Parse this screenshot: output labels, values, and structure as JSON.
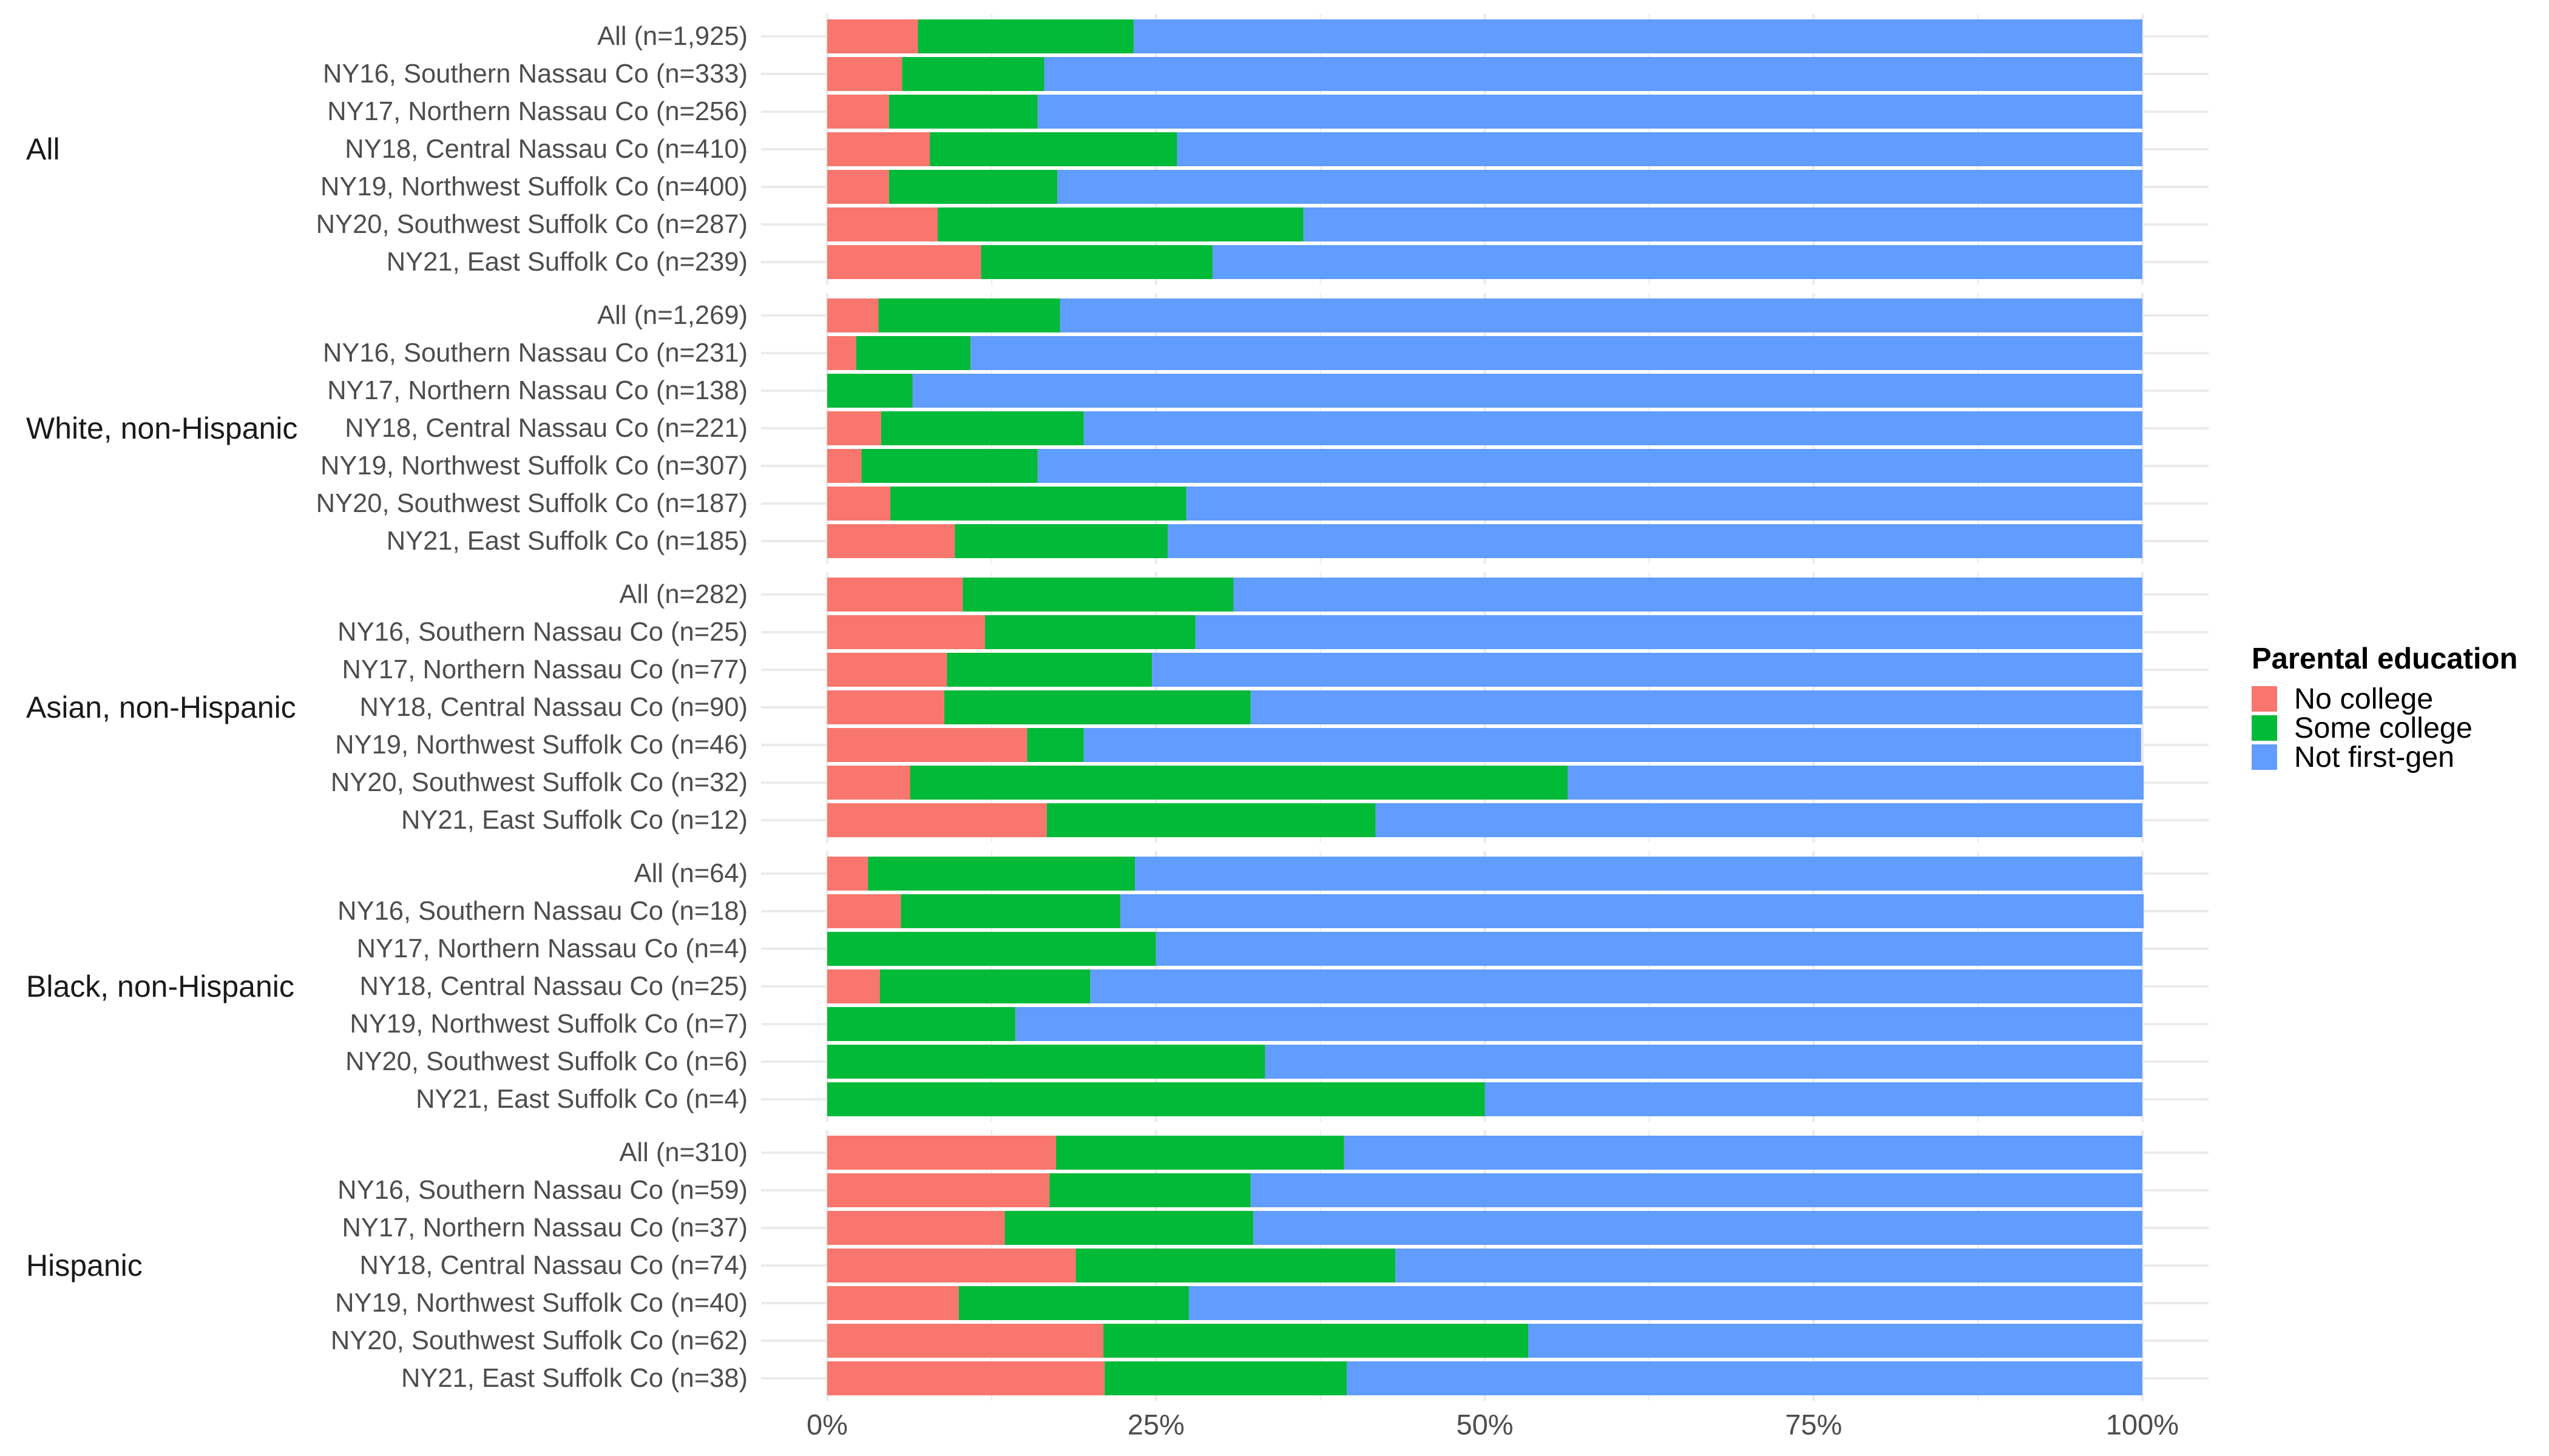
{
  "chart_data": {
    "type": "bar",
    "orientation": "horizontal",
    "stacked": "fill",
    "title": "",
    "xlabel": "",
    "ylabel": "",
    "xlim": [
      0,
      100
    ],
    "x_unit": "percent",
    "x_ticks": [
      0,
      25,
      50,
      75,
      100
    ],
    "x_tick_labels": [
      "0%",
      "25%",
      "50%",
      "75%",
      "100%"
    ],
    "grid": true,
    "legend": {
      "title": "Parental education",
      "position": "right",
      "entries": [
        "No college",
        "Some college",
        "Not first-gen"
      ]
    },
    "series_colors": {
      "No college": "#F8766D",
      "Some college": "#00BA38",
      "Not first-gen": "#619CFF"
    },
    "panels": [
      {
        "facet": "All",
        "categories": [
          "All (n=1,925)",
          "NY16, Southern Nassau Co (n=333)",
          "NY17, Northern Nassau Co (n=256)",
          "NY18, Central Nassau Co (n=410)",
          "NY19, Northwest Suffolk Co (n=400)",
          "NY20, Southwest Suffolk Co (n=287)",
          "NY21, East Suffolk Co (n=239)"
        ],
        "series": [
          {
            "name": "No college",
            "values": [
              6.9,
              5.7,
              4.7,
              7.8,
              4.7,
              8.4,
              11.7
            ]
          },
          {
            "name": "Some college",
            "values": [
              16.4,
              10.8,
              11.3,
              18.8,
              12.8,
              27.8,
              17.6
            ]
          },
          {
            "name": "Not first-gen",
            "values": [
              76.7,
              83.5,
              84.0,
              73.4,
              82.5,
              63.8,
              70.7
            ]
          }
        ]
      },
      {
        "facet": "White, non-Hispanic",
        "categories": [
          "All (n=1,269)",
          "NY16, Southern Nassau Co (n=231)",
          "NY17, Northern Nassau Co (n=138)",
          "NY18, Central Nassau Co (n=221)",
          "NY19, Northwest Suffolk Co (n=307)",
          "NY20, Southwest Suffolk Co (n=187)",
          "NY21, East Suffolk Co (n=185)"
        ],
        "series": [
          {
            "name": "No college",
            "values": [
              3.9,
              2.2,
              0.0,
              4.1,
              2.6,
              4.8,
              9.7
            ]
          },
          {
            "name": "Some college",
            "values": [
              13.8,
              8.7,
              6.5,
              15.4,
              13.4,
              22.5,
              16.2
            ]
          },
          {
            "name": "Not first-gen",
            "values": [
              82.3,
              89.1,
              93.5,
              80.5,
              84.0,
              72.7,
              74.1
            ]
          }
        ]
      },
      {
        "facet": "Asian, non-Hispanic",
        "categories": [
          "All (n=282)",
          "NY16, Southern Nassau Co (n=25)",
          "NY17, Northern Nassau Co (n=77)",
          "NY18, Central Nassau Co (n=90)",
          "NY19, Northwest Suffolk Co (n=46)",
          "NY20, Southwest Suffolk Co (n=32)",
          "NY21, East Suffolk Co (n=12)"
        ],
        "series": [
          {
            "name": "No college",
            "values": [
              10.3,
              12.0,
              9.1,
              8.9,
              15.2,
              6.3,
              16.7
            ]
          },
          {
            "name": "Some college",
            "values": [
              20.6,
              16.0,
              15.6,
              23.3,
              4.3,
              50.0,
              25.0
            ]
          },
          {
            "name": "Not first-gen",
            "values": [
              69.1,
              72.0,
              75.3,
              67.8,
              80.4,
              43.8,
              58.3
            ]
          }
        ]
      },
      {
        "facet": "Black, non-Hispanic",
        "categories": [
          "All (n=64)",
          "NY16, Southern Nassau Co (n=18)",
          "NY17, Northern Nassau Co (n=4)",
          "NY18, Central Nassau Co (n=25)",
          "NY19, Northwest Suffolk Co (n=7)",
          "NY20, Southwest Suffolk Co (n=6)",
          "NY21, East Suffolk Co (n=4)"
        ],
        "series": [
          {
            "name": "No college",
            "values": [
              3.1,
              5.6,
              0.0,
              4.0,
              0.0,
              0.0,
              0.0
            ]
          },
          {
            "name": "Some college",
            "values": [
              20.3,
              16.7,
              25.0,
              16.0,
              14.3,
              33.3,
              50.0
            ]
          },
          {
            "name": "Not first-gen",
            "values": [
              76.6,
              77.8,
              75.0,
              80.0,
              85.7,
              66.7,
              50.0
            ]
          }
        ]
      },
      {
        "facet": "Hispanic",
        "categories": [
          "All (n=310)",
          "NY16, Southern Nassau Co (n=59)",
          "NY17, Northern Nassau Co (n=37)",
          "NY18, Central Nassau Co (n=74)",
          "NY19, Northwest Suffolk Co (n=40)",
          "NY20, Southwest Suffolk Co (n=62)",
          "NY21, East Suffolk Co (n=38)"
        ],
        "series": [
          {
            "name": "No college",
            "values": [
              17.4,
              16.9,
              13.5,
              18.9,
              10.0,
              21.0,
              21.1
            ]
          },
          {
            "name": "Some college",
            "values": [
              21.9,
              15.3,
              18.9,
              24.3,
              17.5,
              32.3,
              18.4
            ]
          },
          {
            "name": "Not first-gen",
            "values": [
              60.7,
              67.8,
              67.6,
              56.8,
              72.5,
              46.7,
              60.5
            ]
          }
        ]
      }
    ]
  }
}
